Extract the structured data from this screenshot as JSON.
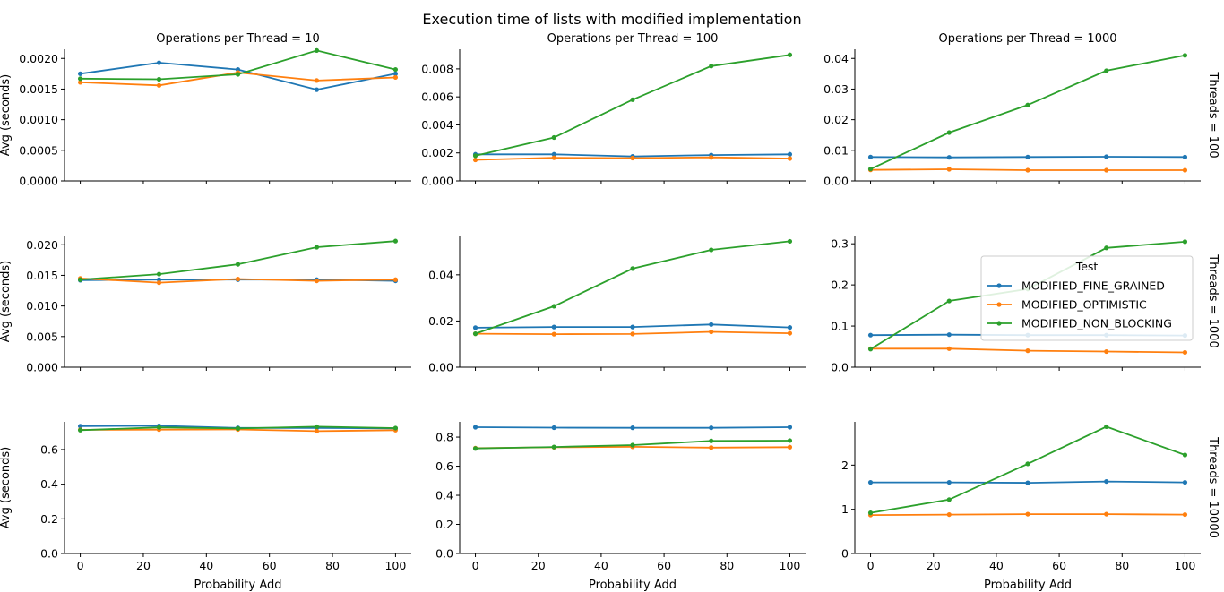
{
  "chart_data": {
    "type": "line",
    "title": "Execution time of lists with modified implementation",
    "x": [
      0,
      25,
      50,
      75,
      100
    ],
    "xlabel": "Probability Add",
    "ylabel": "Avg (seconds)",
    "xticks": [
      "0",
      "20",
      "40",
      "60",
      "80",
      "100"
    ],
    "col_titles": [
      "Operations per Thread = 10",
      "Operations per Thread = 100",
      "Operations per Thread = 1000"
    ],
    "row_titles": [
      "Threads = 100",
      "Threads = 1000",
      "Threads = 10000"
    ],
    "legend": {
      "title": "Test",
      "placement": "right"
    },
    "series_names": [
      "MODIFIED_FINE_GRAINED",
      "MODIFIED_OPTIMISTIC",
      "MODIFIED_NON_BLOCKING"
    ],
    "colors": [
      "#1f77b4",
      "#ff7f0e",
      "#2ca02c"
    ],
    "panels": [
      {
        "row": 0,
        "col": 0,
        "ylim": [
          0,
          0.00215
        ],
        "yticks": [
          "0.0000",
          "0.0005",
          "0.0010",
          "0.0015",
          "0.0020"
        ],
        "series": [
          {
            "name": "MODIFIED_FINE_GRAINED",
            "values": [
              0.00175,
              0.00193,
              0.00182,
              0.00149,
              0.00175
            ]
          },
          {
            "name": "MODIFIED_OPTIMISTIC",
            "values": [
              0.00161,
              0.00156,
              0.00177,
              0.00164,
              0.00169
            ]
          },
          {
            "name": "MODIFIED_NON_BLOCKING",
            "values": [
              0.00167,
              0.00166,
              0.00174,
              0.00213,
              0.00182
            ]
          }
        ]
      },
      {
        "row": 0,
        "col": 1,
        "ylim": [
          0,
          0.0094
        ],
        "yticks": [
          "0.000",
          "0.002",
          "0.004",
          "0.006",
          "0.008"
        ],
        "series": [
          {
            "name": "MODIFIED_FINE_GRAINED",
            "values": [
              0.0019,
              0.0019,
              0.00175,
              0.00185,
              0.0019
            ]
          },
          {
            "name": "MODIFIED_OPTIMISTIC",
            "values": [
              0.0015,
              0.00165,
              0.00163,
              0.00168,
              0.0016
            ]
          },
          {
            "name": "MODIFIED_NON_BLOCKING",
            "values": [
              0.0018,
              0.0031,
              0.0058,
              0.0082,
              0.009
            ]
          }
        ]
      },
      {
        "row": 0,
        "col": 2,
        "ylim": [
          0,
          0.043
        ],
        "yticks": [
          "0.00",
          "0.01",
          "0.02",
          "0.03",
          "0.04"
        ],
        "series": [
          {
            "name": "MODIFIED_FINE_GRAINED",
            "values": [
              0.0078,
              0.0077,
              0.0078,
              0.0079,
              0.0078
            ]
          },
          {
            "name": "MODIFIED_OPTIMISTIC",
            "values": [
              0.0036,
              0.0038,
              0.0035,
              0.0035,
              0.0035
            ]
          },
          {
            "name": "MODIFIED_NON_BLOCKING",
            "values": [
              0.0039,
              0.0158,
              0.0248,
              0.036,
              0.041
            ]
          }
        ]
      },
      {
        "row": 1,
        "col": 0,
        "ylim": [
          0,
          0.0215
        ],
        "yticks": [
          "0.000",
          "0.005",
          "0.010",
          "0.015",
          "0.020"
        ],
        "series": [
          {
            "name": "MODIFIED_FINE_GRAINED",
            "values": [
              0.0142,
              0.0143,
              0.0143,
              0.0143,
              0.0141
            ]
          },
          {
            "name": "MODIFIED_OPTIMISTIC",
            "values": [
              0.0145,
              0.0138,
              0.0144,
              0.0141,
              0.0143
            ]
          },
          {
            "name": "MODIFIED_NON_BLOCKING",
            "values": [
              0.0143,
              0.0152,
              0.0168,
              0.0196,
              0.0206
            ]
          }
        ]
      },
      {
        "row": 1,
        "col": 1,
        "ylim": [
          0,
          0.057
        ],
        "yticks": [
          "0.00",
          "0.02",
          "0.04"
        ],
        "series": [
          {
            "name": "MODIFIED_FINE_GRAINED",
            "values": [
              0.0171,
              0.0174,
              0.0174,
              0.0185,
              0.0172
            ]
          },
          {
            "name": "MODIFIED_OPTIMISTIC",
            "values": [
              0.0145,
              0.0143,
              0.0144,
              0.0153,
              0.0147
            ]
          },
          {
            "name": "MODIFIED_NON_BLOCKING",
            "values": [
              0.0145,
              0.0264,
              0.0427,
              0.0508,
              0.0545
            ]
          }
        ]
      },
      {
        "row": 1,
        "col": 2,
        "ylim": [
          0,
          0.32
        ],
        "yticks": [
          "0.0",
          "0.1",
          "0.2",
          "0.3"
        ],
        "series": [
          {
            "name": "MODIFIED_FINE_GRAINED",
            "values": [
              0.078,
              0.079,
              0.078,
              0.078,
              0.077
            ]
          },
          {
            "name": "MODIFIED_OPTIMISTIC",
            "values": [
              0.045,
              0.045,
              0.04,
              0.038,
              0.036
            ]
          },
          {
            "name": "MODIFIED_NON_BLOCKING",
            "values": [
              0.044,
              0.161,
              0.19,
              0.29,
              0.305
            ]
          }
        ]
      },
      {
        "row": 2,
        "col": 0,
        "ylim": [
          0,
          0.76
        ],
        "yticks": [
          "0.0",
          "0.2",
          "0.4",
          "0.6"
        ],
        "series": [
          {
            "name": "MODIFIED_FINE_GRAINED",
            "values": [
              0.735,
              0.737,
              0.725,
              0.725,
              0.722
            ]
          },
          {
            "name": "MODIFIED_OPTIMISTIC",
            "values": [
              0.714,
              0.715,
              0.716,
              0.706,
              0.712
            ]
          },
          {
            "name": "MODIFIED_NON_BLOCKING",
            "values": [
              0.712,
              0.728,
              0.722,
              0.732,
              0.724
            ]
          }
        ]
      },
      {
        "row": 2,
        "col": 1,
        "ylim": [
          0,
          0.905
        ],
        "yticks": [
          "0.0",
          "0.2",
          "0.4",
          "0.6",
          "0.8"
        ],
        "series": [
          {
            "name": "MODIFIED_FINE_GRAINED",
            "values": [
              0.868,
              0.865,
              0.864,
              0.864,
              0.868
            ]
          },
          {
            "name": "MODIFIED_OPTIMISTIC",
            "values": [
              0.724,
              0.73,
              0.733,
              0.728,
              0.731
            ]
          },
          {
            "name": "MODIFIED_NON_BLOCKING",
            "values": [
              0.722,
              0.732,
              0.745,
              0.774,
              0.776
            ]
          }
        ]
      },
      {
        "row": 2,
        "col": 2,
        "ylim": [
          0,
          2.98
        ],
        "yticks": [
          "0",
          "1",
          "2"
        ],
        "series": [
          {
            "name": "MODIFIED_FINE_GRAINED",
            "values": [
              1.61,
              1.61,
              1.6,
              1.63,
              1.61
            ]
          },
          {
            "name": "MODIFIED_OPTIMISTIC",
            "values": [
              0.87,
              0.88,
              0.89,
              0.89,
              0.88
            ]
          },
          {
            "name": "MODIFIED_NON_BLOCKING",
            "values": [
              0.92,
              1.22,
              2.03,
              2.87,
              2.23
            ]
          }
        ]
      }
    ]
  }
}
